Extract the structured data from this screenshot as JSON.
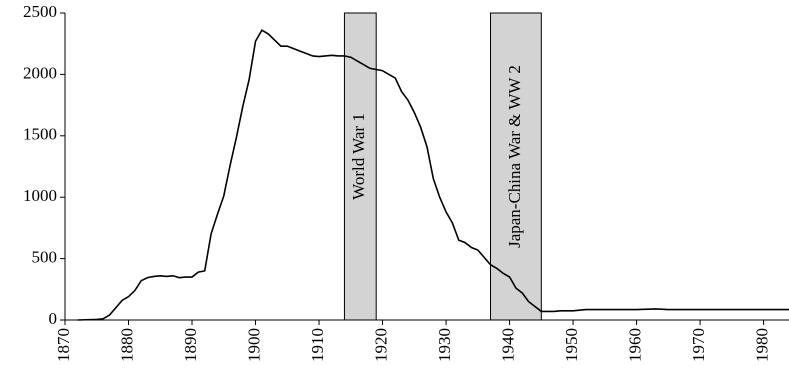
{
  "chart_data": {
    "type": "line",
    "x": [
      1872,
      1875,
      1876,
      1877,
      1878,
      1879,
      1880,
      1881,
      1882,
      1883,
      1884,
      1885,
      1886,
      1887,
      1888,
      1889,
      1890,
      1891,
      1892,
      1893,
      1894,
      1895,
      1896,
      1897,
      1898,
      1899,
      1900,
      1901,
      1902,
      1903,
      1904,
      1905,
      1906,
      1907,
      1908,
      1909,
      1910,
      1911,
      1912,
      1913,
      1914,
      1915,
      1916,
      1917,
      1918,
      1919,
      1920,
      1921,
      1922,
      1923,
      1924,
      1925,
      1926,
      1927,
      1928,
      1929,
      1930,
      1931,
      1932,
      1933,
      1934,
      1935,
      1936,
      1937,
      1938,
      1939,
      1940,
      1941,
      1942,
      1943,
      1944,
      1945,
      1946,
      1947,
      1948,
      1950,
      1952,
      1960,
      1963,
      1965,
      1984
    ],
    "series": [
      {
        "color": "#000000",
        "values": [
          0,
          5,
          10,
          40,
          100,
          160,
          190,
          240,
          320,
          345,
          355,
          360,
          355,
          360,
          345,
          350,
          350,
          390,
          400,
          700,
          860,
          1010,
          1260,
          1490,
          1740,
          1960,
          2270,
          2360,
          2330,
          2280,
          2230,
          2230,
          2210,
          2190,
          2170,
          2150,
          2145,
          2150,
          2155,
          2150,
          2150,
          2140,
          2110,
          2080,
          2050,
          2040,
          2030,
          2000,
          1970,
          1860,
          1790,
          1690,
          1570,
          1410,
          1150,
          1000,
          880,
          790,
          650,
          630,
          590,
          570,
          510,
          450,
          420,
          380,
          350,
          260,
          220,
          150,
          110,
          70,
          70,
          70,
          75,
          75,
          85,
          85,
          90,
          85,
          85
        ]
      }
    ],
    "bands": [
      {
        "start": 1914,
        "end": 1919,
        "label": "World War 1",
        "color": "#d3d3d3"
      },
      {
        "start": 1937,
        "end": 1945,
        "label": "Japan-China War & WW 2",
        "color": "#d3d3d3"
      }
    ],
    "xlim": [
      1870,
      1984
    ],
    "xticks": [
      1870,
      1880,
      1890,
      1900,
      1910,
      1920,
      1930,
      1940,
      1950,
      1960,
      1970,
      1980
    ],
    "ylim": [
      0,
      2500
    ],
    "yticks": [
      0,
      500,
      1000,
      1500,
      2000,
      2500
    ]
  }
}
